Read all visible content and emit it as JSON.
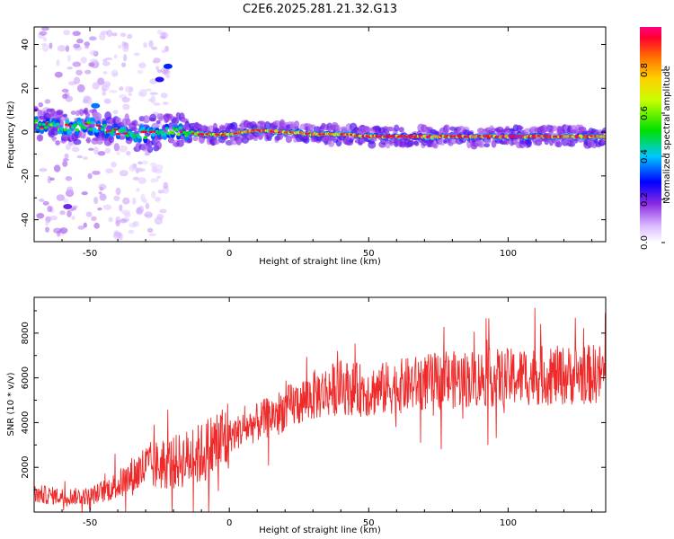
{
  "title": "C2E6.2025.281.21.32.G13",
  "chart_data": [
    {
      "type": "heatmap",
      "xlabel": "Height of straight line (km)",
      "ylabel": "Frequency (Hz)",
      "xlim": [
        -70,
        135
      ],
      "ylim": [
        -50,
        48
      ],
      "xticks": [
        -50,
        0,
        50,
        100
      ],
      "yticks": [
        -40,
        -20,
        0,
        20,
        40
      ],
      "colorbar": {
        "label": "Normalized spectral amplitude",
        "range": [
          0,
          1
        ],
        "ticks": [
          "0.0",
          "0.2",
          "0.4",
          "0.6",
          "0.8"
        ],
        "tick_values": [
          0.0,
          0.2,
          0.4,
          0.6,
          0.8
        ]
      },
      "ridge": {
        "x": [
          -70,
          -60,
          -50,
          -40,
          -30,
          -20,
          -15,
          -10,
          0,
          10,
          20,
          30,
          40,
          50,
          60,
          70,
          80,
          90,
          100,
          110,
          120,
          135
        ],
        "freq": [
          4,
          2,
          3,
          0,
          -1,
          1,
          0,
          -1,
          -1,
          1,
          0,
          -1,
          -1,
          -2,
          -2,
          -2,
          -2,
          -2,
          -2,
          -2,
          -2,
          -2
        ],
        "amplitude": [
          0.6,
          0.55,
          0.5,
          0.55,
          0.5,
          0.55,
          0.6,
          0.75,
          0.85,
          0.9,
          0.85,
          0.8,
          0.85,
          0.9,
          0.92,
          0.95,
          0.95,
          0.95,
          0.95,
          0.95,
          0.9,
          0.85
        ]
      }
    },
    {
      "type": "line",
      "xlabel": "Height of straight line (km)",
      "ylabel": "SNR (10 * v/v)",
      "xlim": [
        -70,
        135
      ],
      "ylim": [
        0,
        9600
      ],
      "xticks": [
        -50,
        0,
        50,
        100
      ],
      "yticks": [
        2000,
        4000,
        6000,
        8000
      ],
      "color": "#ee2a2a",
      "trend": {
        "x": [
          -70,
          -60,
          -50,
          -40,
          -30,
          -20,
          -10,
          0,
          10,
          20,
          30,
          40,
          50,
          60,
          70,
          80,
          90,
          100,
          110,
          120,
          135
        ],
        "y": [
          800,
          700,
          700,
          1200,
          2000,
          2200,
          2600,
          3400,
          4000,
          4600,
          5200,
          5600,
          5400,
          5600,
          5800,
          5900,
          6000,
          6000,
          6100,
          6100,
          6200
        ]
      }
    }
  ]
}
